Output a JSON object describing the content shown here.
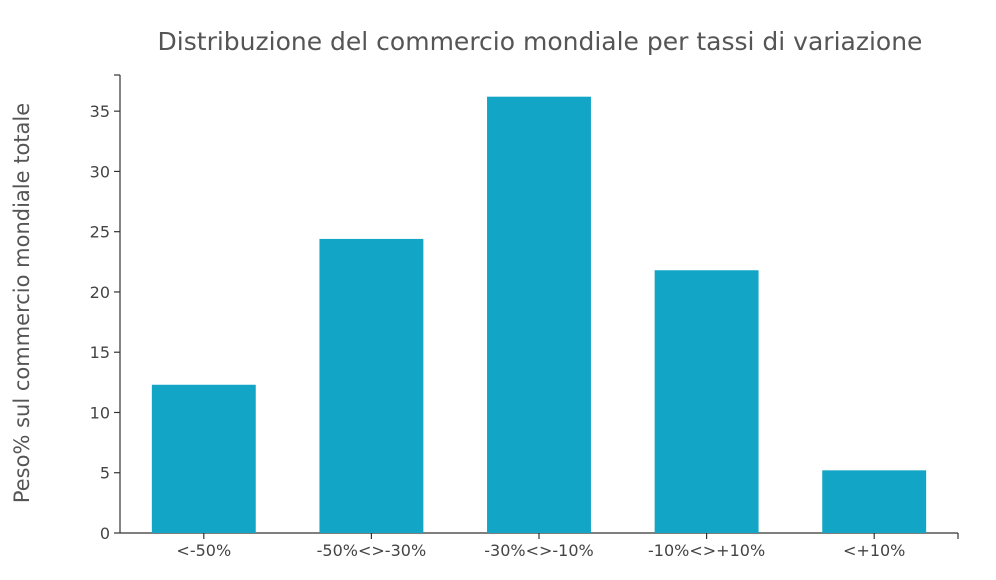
{
  "chart_data": {
    "type": "bar",
    "title": "Distribuzione del commercio mondiale per tassi di variazione",
    "xlabel": "",
    "ylabel": "Peso% sul commercio mondiale totale",
    "categories": [
      "<-50%",
      "-50%<>-30%",
      "-30%<>-10%",
      "-10%<>+10%",
      "<+10%"
    ],
    "values": [
      12.3,
      24.4,
      36.2,
      21.8,
      5.2
    ],
    "ylim": [
      0,
      38
    ],
    "yticks": [
      0,
      5,
      10,
      15,
      20,
      25,
      30,
      35
    ],
    "grid": false,
    "legend": "none",
    "bar_color": "#12a5c6"
  }
}
